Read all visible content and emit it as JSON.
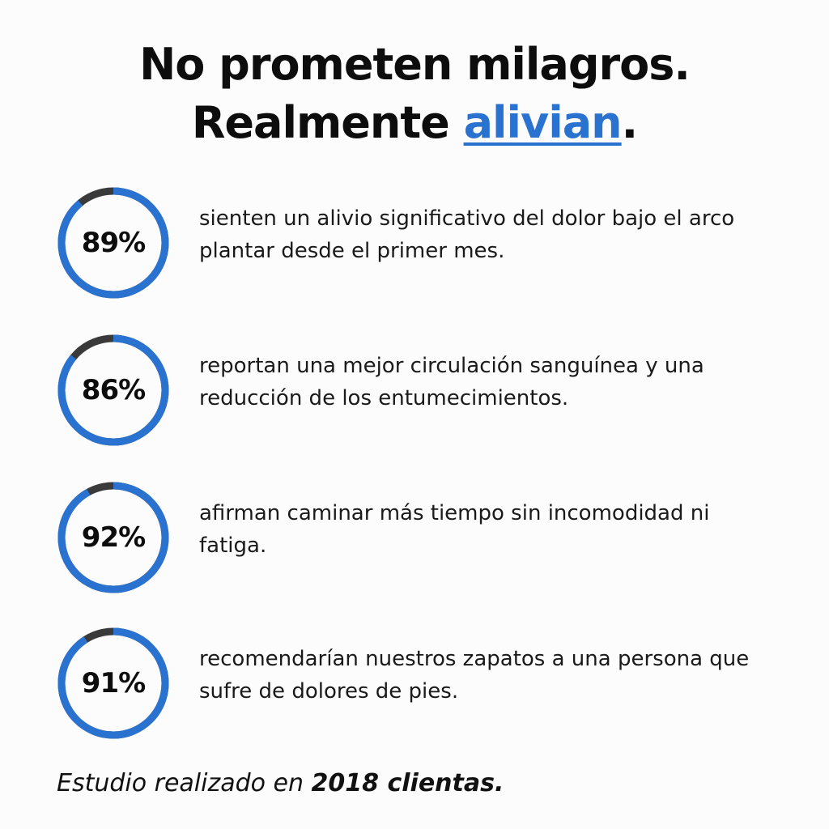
{
  "headline": {
    "line1": "No prometen milagros.",
    "line2_prefix": "Realmente ",
    "line2_accent": "alivian",
    "line2_suffix": "."
  },
  "colors": {
    "accent": "#2a72d0",
    "ring_track": "#3a3a3a",
    "text": "#111111"
  },
  "stats": [
    {
      "value": 89,
      "label": "89%",
      "text": "sienten un alivio significativo del dolor bajo el arco plantar desde el primer mes."
    },
    {
      "value": 86,
      "label": "86%",
      "text": "reportan una mejor circulación sanguínea y una reducción de los entumecimientos."
    },
    {
      "value": 92,
      "label": "92%",
      "text": "afirman caminar más tiempo sin incomodidad ni fatiga."
    },
    {
      "value": 91,
      "label": "91%",
      "text": "recomendarían nuestros zapatos a una persona que sufre de dolores de pies."
    }
  ],
  "footnote": {
    "prefix": "Estudio realizado en ",
    "emphasis": "2018 clientas."
  }
}
